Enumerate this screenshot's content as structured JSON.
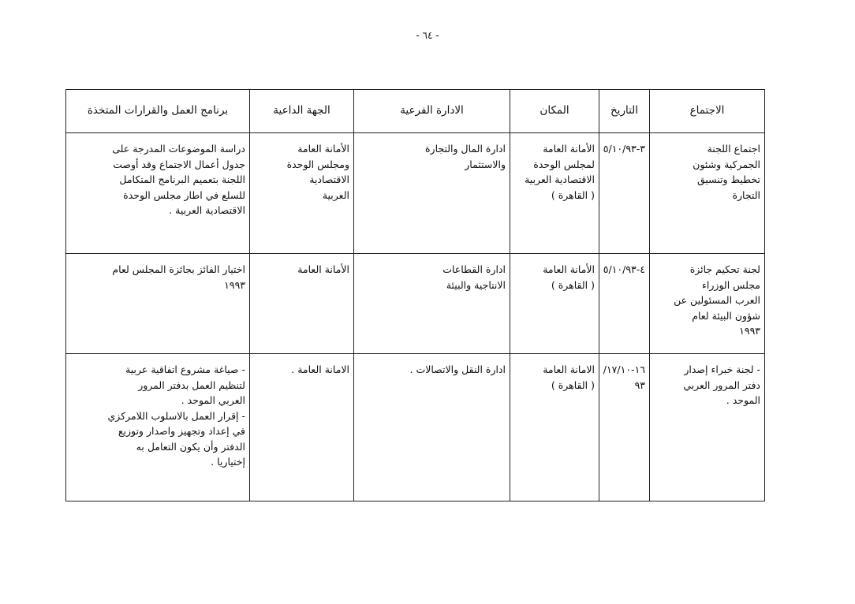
{
  "page_number": "- ٦٤ -",
  "table": {
    "headers": [
      "الاجتماع",
      "التاريخ",
      "المكان",
      "الادارة الفرعية",
      "الجهة الداعية",
      "برنامج العمل والقرارات المتخذة"
    ],
    "rows": [
      [
        [
          "اجتماع اللجنة",
          "الجمركية وشئون",
          "تخطيط وتنسيق",
          "التجارة"
        ],
        [
          "٣-٥/١٠/٩٣"
        ],
        [
          "الأمانة العامة",
          "لمجلس الوحدة",
          "الاقتصادية العربية",
          "( القاهرة )"
        ],
        [
          "ادارة المال والتجارة",
          "والاستثمار"
        ],
        [
          "الأمانة العامة",
          "ومجلس الوحدة",
          "الاقتصادية",
          "العربية"
        ],
        [
          "دراسة الموضوعات المدرجة على",
          "جدول أعمال الاجتماع وقد أوصت",
          "اللجنة بتعميم البرنامج المتكامل",
          "للسلع في اطار مجلس الوحدة",
          "الاقتصادية العربية ."
        ]
      ],
      [
        [
          "لجنة تحكيم جائزة",
          "مجلس الوزراء",
          "العرب المسئولين عن",
          "شؤون البيئة لعام",
          "١٩٩٣"
        ],
        [
          "٤-٥/١٠/٩٣"
        ],
        [
          "الأمانة العامة",
          "( القاهرة )"
        ],
        [
          "ادارة القطاعات",
          "الانتاجية والبيئة"
        ],
        [
          "الأمانة العامة"
        ],
        [
          "اختيار الفائز بجائزة المجلس لعام",
          "١٩٩٣"
        ]
      ],
      [
        [
          "- لجنة خبراء إصدار",
          "دفتر المرور العربي",
          "الموحد ."
        ],
        [
          "١٦-١٧/١٠/",
          "٩٣"
        ],
        [
          "الامانة العامة",
          "( القاهرة )"
        ],
        [
          "ادارة النقل والاتصالات ."
        ],
        [
          "الامانة العامة ."
        ],
        [
          "- صياغة مشروع اتفاقية عربية",
          "لتنظيم العمل بدفتر المرور",
          "العربي الموحد .",
          "- إقرار العمل بالاسلوب اللامركزي",
          "في إعداد وتجهيز واصدار وتوزيع",
          "الدفتر وأن يكون التعامل به",
          "إختياريا ."
        ]
      ]
    ]
  }
}
